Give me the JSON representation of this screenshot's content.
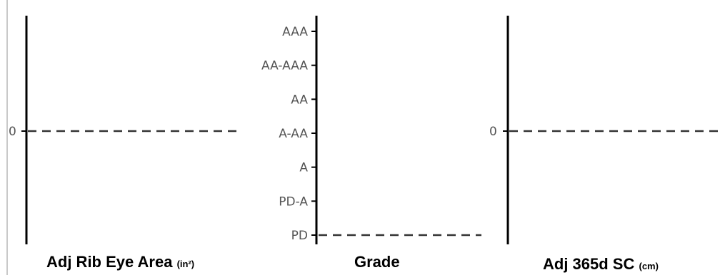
{
  "chart_data": [
    {
      "type": "line",
      "xlabel": "Adj Rib Eye Area",
      "unit": "(in²)",
      "ticks": [
        "0"
      ],
      "reference_value": 0
    },
    {
      "type": "line",
      "xlabel": "Grade",
      "ticks": [
        "AAA",
        "AA-AAA",
        "AA",
        "A-AA",
        "A",
        "PD-A",
        "PD"
      ],
      "reference_value": "PD"
    },
    {
      "type": "line",
      "xlabel": "Adj 365d SC",
      "unit": "(cm)",
      "ticks": [
        "0"
      ],
      "reference_value": 0
    }
  ],
  "colors": {
    "axis": "#000000",
    "tick_label": "#555555",
    "reference_line": "#333333",
    "border": "#c9c9c9"
  }
}
